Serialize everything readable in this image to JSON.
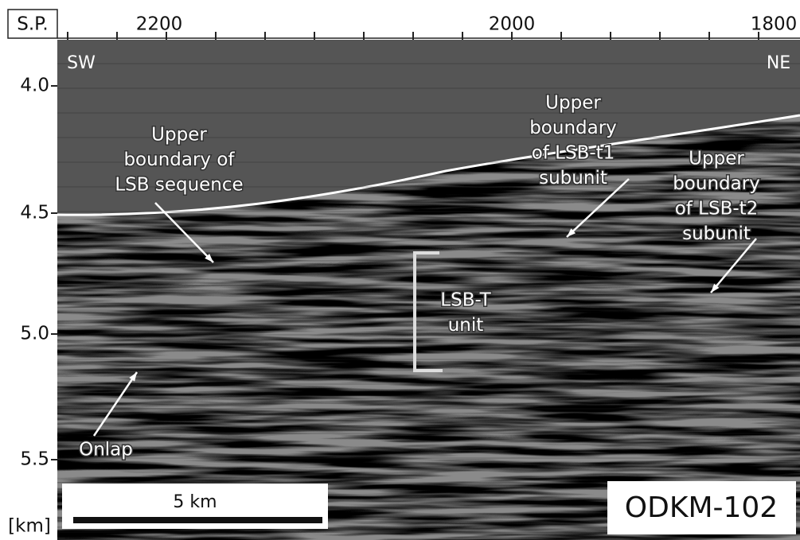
{
  "axis_top": {
    "label": "S.P.",
    "ticks": [
      "2200",
      "2000",
      "1800"
    ]
  },
  "axis_left": {
    "unit": "[km]",
    "ticks": [
      "4.0",
      "4.5",
      "5.0",
      "5.5"
    ]
  },
  "directions": {
    "left": "SW",
    "right": "NE"
  },
  "annotations": [
    {
      "lines": [
        "Upper",
        "boundary of",
        "LSB sequence"
      ]
    },
    {
      "lines": [
        "Upper",
        "boundary",
        "of LSB-t1",
        "subunit"
      ]
    },
    {
      "lines": [
        "Upper",
        "boundary",
        "of LSB-t2",
        "subunit"
      ]
    },
    {
      "lines": [
        "LSB-T",
        "unit"
      ]
    },
    {
      "lines": [
        "Onlap"
      ]
    }
  ],
  "scale_bar": "5 km",
  "profile": "ODKM-102"
}
